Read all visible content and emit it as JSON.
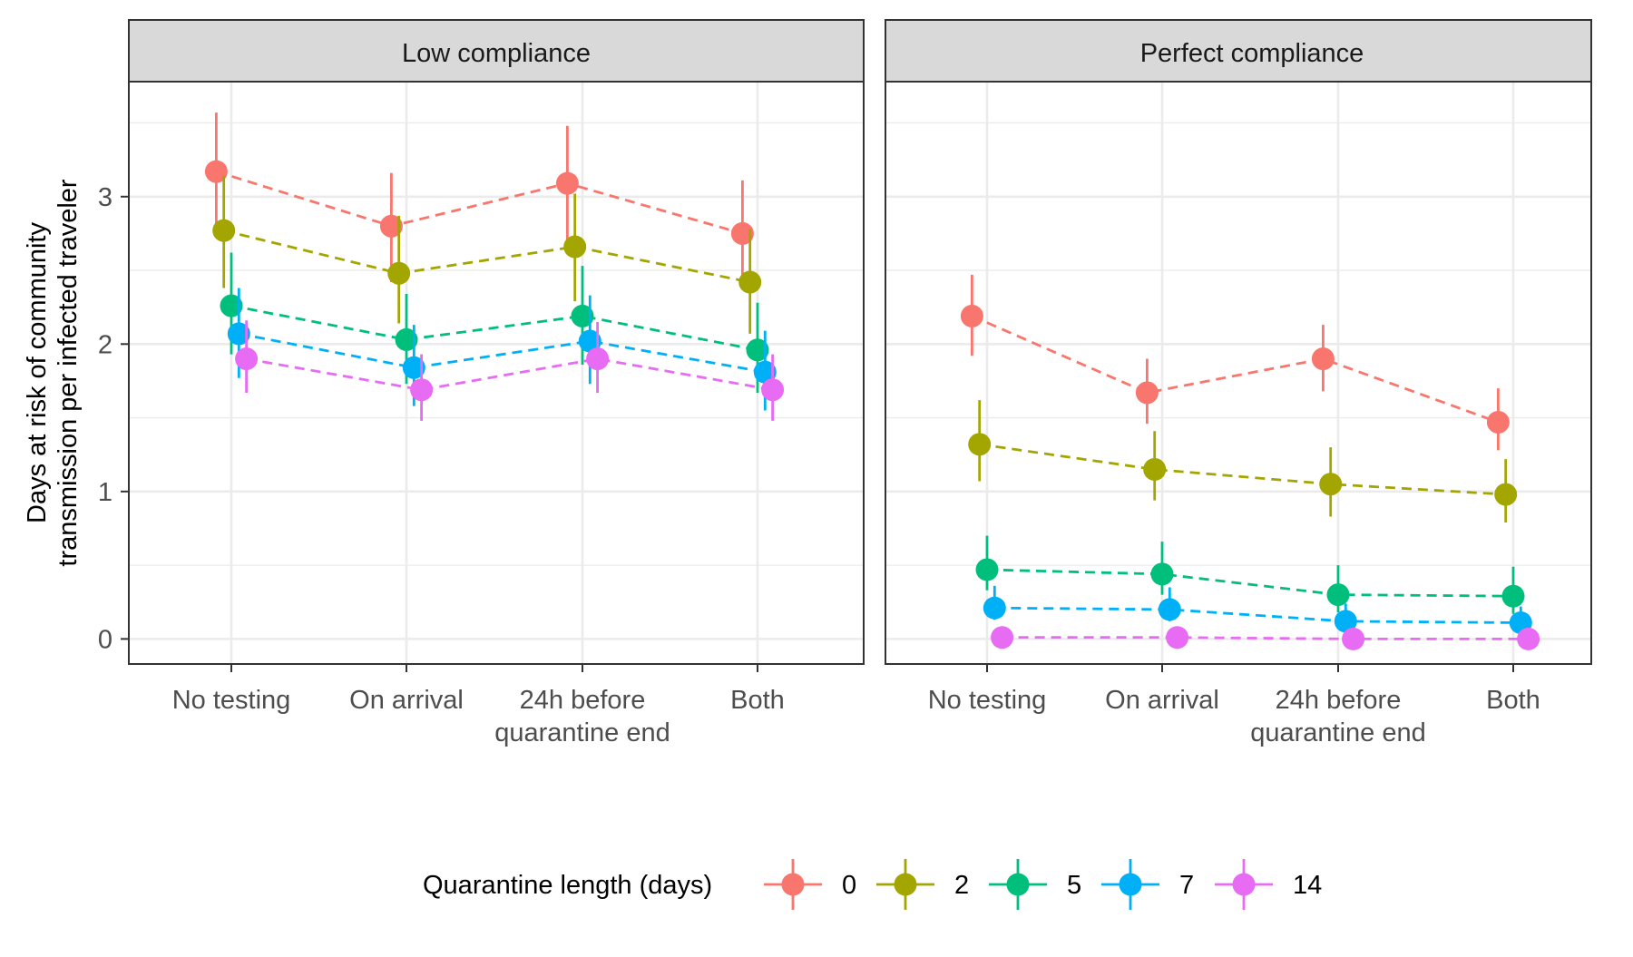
{
  "chart_data": {
    "type": "line",
    "ylabel_line1": "Days at risk of community",
    "ylabel_line2": "transmission per infected traveler",
    "xlabel": "",
    "ylim": [
      -0.17,
      3.78
    ],
    "yticks": [
      0,
      1,
      2,
      3
    ],
    "grid": true,
    "categories": [
      [
        "No testing"
      ],
      [
        "On arrival"
      ],
      [
        "24h before",
        "quarantine end"
      ],
      [
        "Both"
      ]
    ],
    "legend": {
      "title": "Quarantine length (days)",
      "position": "bottom"
    },
    "series_meta": [
      {
        "name": "0",
        "color": "#F8766D"
      },
      {
        "name": "2",
        "color": "#A3A500"
      },
      {
        "name": "5",
        "color": "#00BF7D"
      },
      {
        "name": "7",
        "color": "#00B0F6"
      },
      {
        "name": "14",
        "color": "#E76BF3"
      }
    ],
    "panels": [
      {
        "title": "Low compliance",
        "series": [
          {
            "name": "0",
            "values": [
              3.17,
              2.8,
              3.09,
              2.75
            ],
            "lower": [
              2.78,
              2.42,
              2.7,
              2.38
            ],
            "upper": [
              3.57,
              3.16,
              3.48,
              3.11
            ]
          },
          {
            "name": "2",
            "values": [
              2.77,
              2.48,
              2.66,
              2.42
            ],
            "lower": [
              2.38,
              2.14,
              2.29,
              2.07
            ],
            "upper": [
              3.14,
              2.87,
              3.02,
              2.78
            ]
          },
          {
            "name": "5",
            "values": [
              2.26,
              2.03,
              2.19,
              1.96
            ],
            "lower": [
              1.93,
              1.73,
              1.86,
              1.67
            ],
            "upper": [
              2.62,
              2.34,
              2.53,
              2.28
            ]
          },
          {
            "name": "7",
            "values": [
              2.07,
              1.84,
              2.02,
              1.81
            ],
            "lower": [
              1.77,
              1.58,
              1.73,
              1.55
            ],
            "upper": [
              2.38,
              2.13,
              2.33,
              2.09
            ]
          },
          {
            "name": "14",
            "values": [
              1.9,
              1.69,
              1.9,
              1.69
            ],
            "lower": [
              1.67,
              1.48,
              1.67,
              1.48
            ],
            "upper": [
              2.16,
              1.93,
              2.15,
              1.93
            ]
          }
        ]
      },
      {
        "title": "Perfect compliance",
        "series": [
          {
            "name": "0",
            "values": [
              2.19,
              1.67,
              1.9,
              1.47
            ],
            "lower": [
              1.92,
              1.46,
              1.68,
              1.28
            ],
            "upper": [
              2.47,
              1.9,
              2.13,
              1.7
            ]
          },
          {
            "name": "2",
            "values": [
              1.32,
              1.15,
              1.05,
              0.98
            ],
            "lower": [
              1.07,
              0.94,
              0.83,
              0.79
            ],
            "upper": [
              1.62,
              1.41,
              1.3,
              1.22
            ]
          },
          {
            "name": "5",
            "values": [
              0.47,
              0.44,
              0.3,
              0.29
            ],
            "lower": [
              0.33,
              0.3,
              0.18,
              0.17
            ],
            "upper": [
              0.7,
              0.66,
              0.5,
              0.49
            ]
          },
          {
            "name": "7",
            "values": [
              0.21,
              0.2,
              0.12,
              0.11
            ],
            "lower": [
              0.13,
              0.12,
              0.06,
              0.05
            ],
            "upper": [
              0.36,
              0.35,
              0.24,
              0.22
            ]
          },
          {
            "name": "14",
            "values": [
              0.01,
              0.01,
              0.0,
              0.0
            ],
            "lower": [
              0.0,
              0.0,
              0.0,
              0.0
            ],
            "upper": [
              0.02,
              0.02,
              0.01,
              0.01
            ]
          }
        ]
      }
    ]
  }
}
